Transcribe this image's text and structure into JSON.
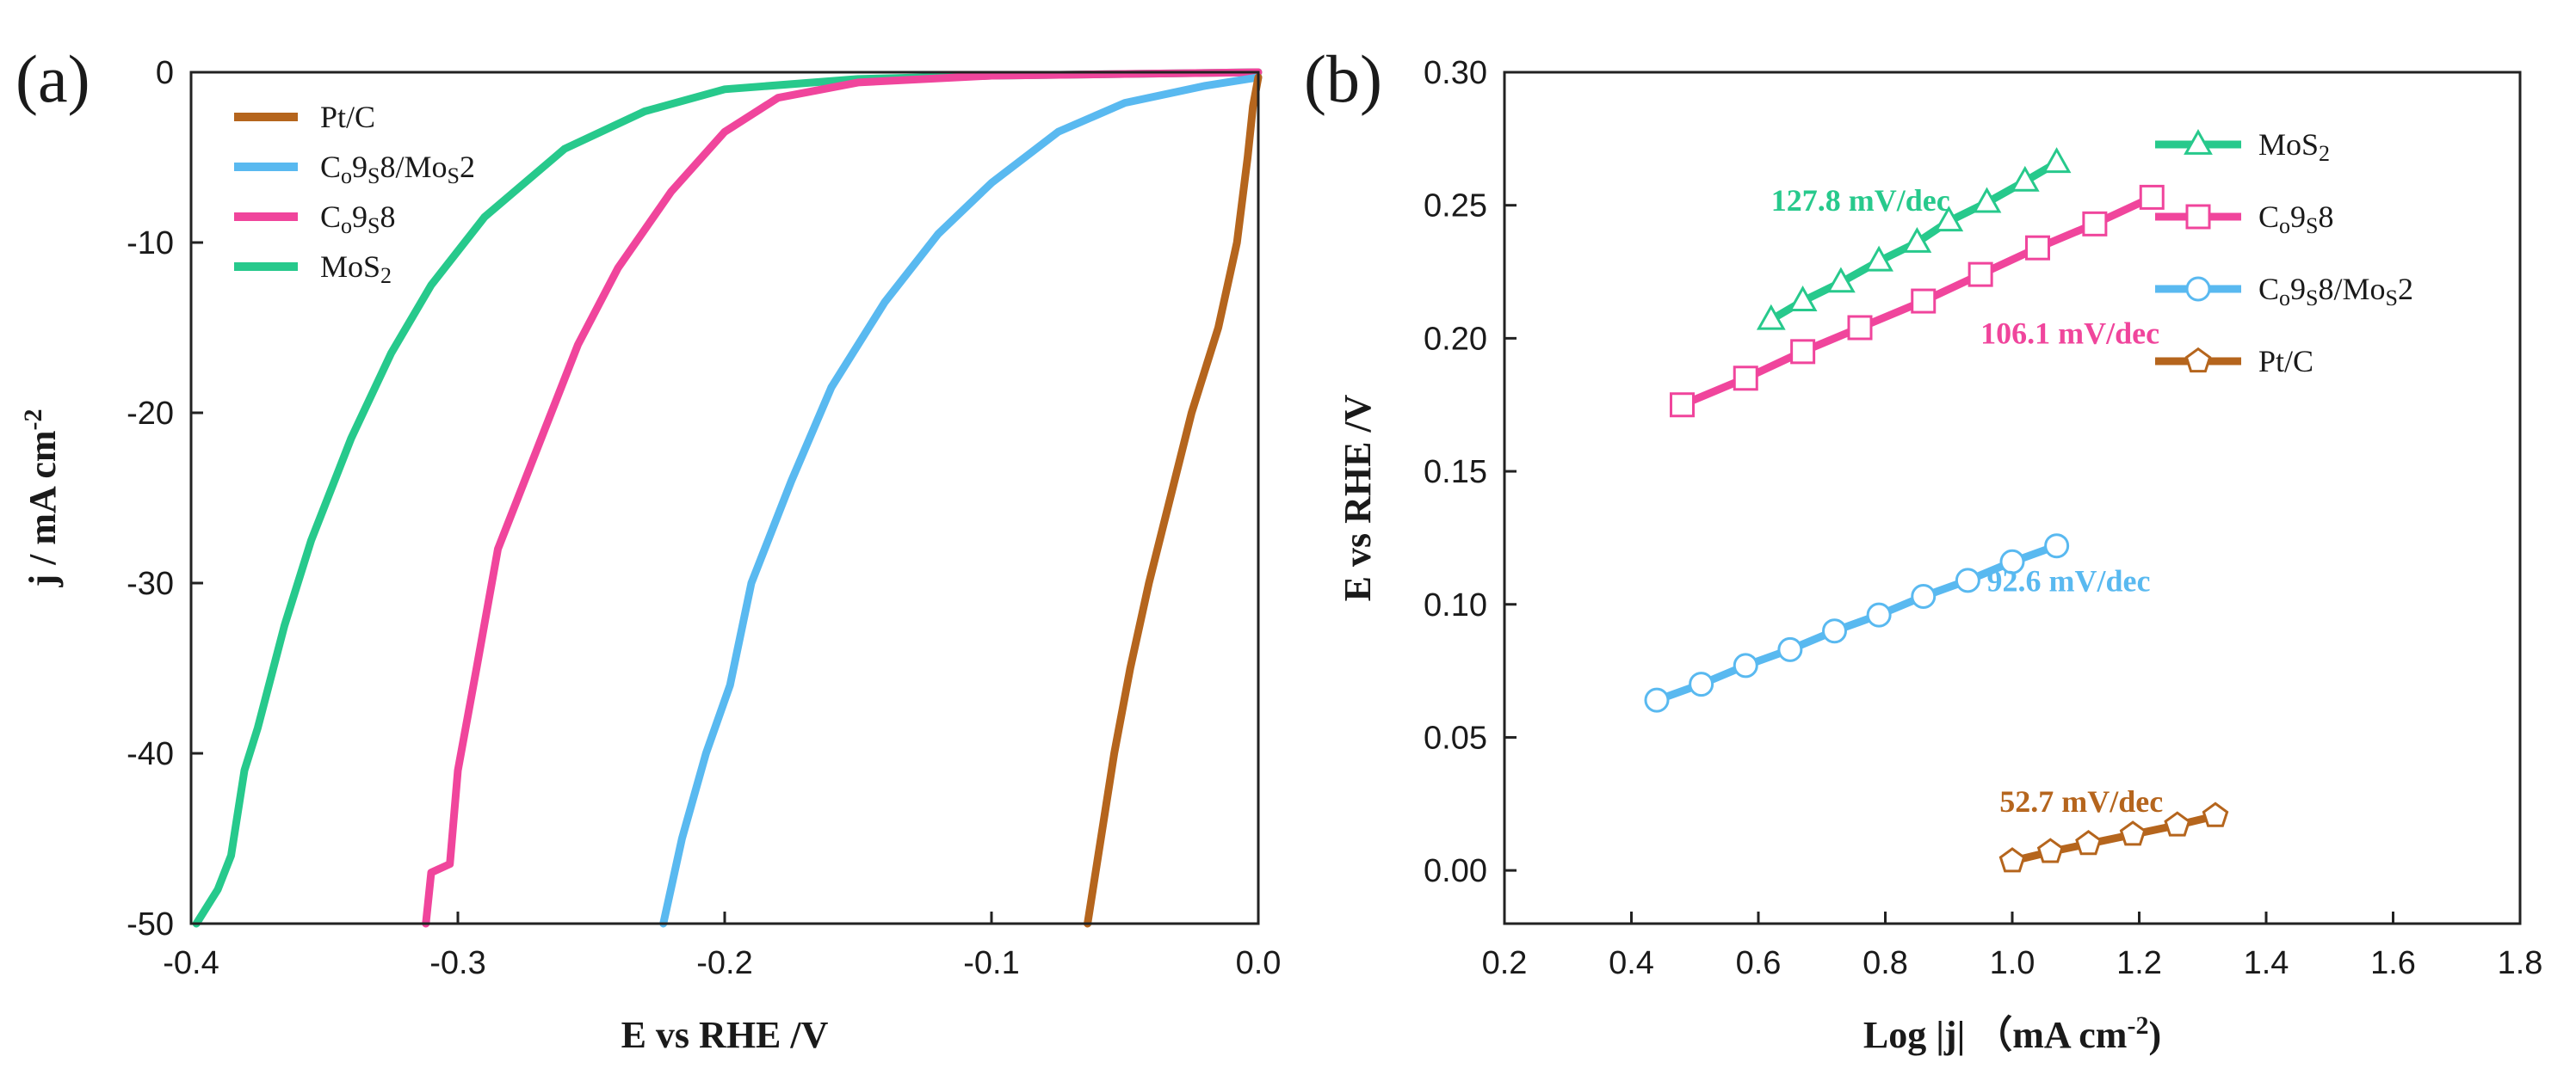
{
  "panels": {
    "a": {
      "label": "(a)"
    },
    "b": {
      "label": "(b)"
    }
  },
  "chart_data": [
    {
      "type": "line",
      "panel": "(a)",
      "xlabel": "E vs RHE /V",
      "ylabel": "j / mA cm",
      "ylabel_sup": "-2",
      "xlim": [
        -0.4,
        0.0
      ],
      "ylim": [
        -50,
        0
      ],
      "xticks": [
        -0.4,
        -0.3,
        -0.2,
        -0.1,
        0.0
      ],
      "xtick_labels": [
        "-0.4",
        "-0.3",
        "-0.2",
        "-0.1",
        "0.0"
      ],
      "yticks": [
        0,
        -10,
        -20,
        -30,
        -40,
        -50
      ],
      "ytick_labels": [
        "0",
        "-10",
        "-20",
        "-30",
        "-40",
        "-50"
      ],
      "legend_position": "top-left",
      "series": [
        {
          "key": "ptc",
          "name": "Pt/C",
          "sub": [],
          "color": "#b5651d",
          "points": [
            [
              0.0,
              -0.3
            ],
            [
              -0.002,
              -2
            ],
            [
              -0.004,
              -5
            ],
            [
              -0.008,
              -10
            ],
            [
              -0.015,
              -15
            ],
            [
              -0.025,
              -20
            ],
            [
              -0.033,
              -25
            ],
            [
              -0.041,
              -30
            ],
            [
              -0.048,
              -35
            ],
            [
              -0.054,
              -40
            ],
            [
              -0.059,
              -45
            ],
            [
              -0.064,
              -50
            ]
          ]
        },
        {
          "key": "co9s8mos2",
          "name": "Co9S8/MoS2",
          "sub": [
            1,
            3,
            8
          ],
          "color": "#59b9f0",
          "points": [
            [
              0.0,
              -0.3
            ],
            [
              -0.02,
              -0.8
            ],
            [
              -0.05,
              -1.8
            ],
            [
              -0.075,
              -3.5
            ],
            [
              -0.1,
              -6.5
            ],
            [
              -0.12,
              -9.5
            ],
            [
              -0.14,
              -13.5
            ],
            [
              -0.16,
              -18.5
            ],
            [
              -0.175,
              -24
            ],
            [
              -0.19,
              -30
            ],
            [
              -0.198,
              -36
            ],
            [
              -0.207,
              -40
            ],
            [
              -0.216,
              -45
            ],
            [
              -0.223,
              -50
            ]
          ]
        },
        {
          "key": "co9s8",
          "name": "Co9S8",
          "sub": [
            1,
            3
          ],
          "color": "#f0459c",
          "points": [
            [
              0.0,
              0.0
            ],
            [
              -0.05,
              -0.1
            ],
            [
              -0.1,
              -0.2
            ],
            [
              -0.15,
              -0.6
            ],
            [
              -0.18,
              -1.5
            ],
            [
              -0.2,
              -3.5
            ],
            [
              -0.22,
              -7
            ],
            [
              -0.24,
              -11.5
            ],
            [
              -0.255,
              -16
            ],
            [
              -0.27,
              -22
            ],
            [
              -0.285,
              -28
            ],
            [
              -0.293,
              -35
            ],
            [
              -0.3,
              -41
            ],
            [
              -0.303,
              -46.5
            ],
            [
              -0.31,
              -47
            ],
            [
              -0.312,
              -50
            ]
          ]
        },
        {
          "key": "mos2",
          "name": "MoS2",
          "sub": [
            3
          ],
          "color": "#27c98c",
          "points": [
            [
              0.0,
              0.0
            ],
            [
              -0.05,
              -0.1
            ],
            [
              -0.1,
              -0.2
            ],
            [
              -0.15,
              -0.4
            ],
            [
              -0.2,
              -1.0
            ],
            [
              -0.23,
              -2.3
            ],
            [
              -0.26,
              -4.5
            ],
            [
              -0.29,
              -8.5
            ],
            [
              -0.31,
              -12.5
            ],
            [
              -0.325,
              -16.5
            ],
            [
              -0.34,
              -21.5
            ],
            [
              -0.355,
              -27.5
            ],
            [
              -0.365,
              -32.5
            ],
            [
              -0.375,
              -38.5
            ],
            [
              -0.38,
              -41
            ],
            [
              -0.385,
              -46
            ],
            [
              -0.39,
              -48
            ],
            [
              -0.398,
              -50
            ]
          ]
        }
      ]
    },
    {
      "type": "line",
      "panel": "(b)",
      "xlabel": "Log |j| （mA cm",
      "xlabel_sup": "-2",
      "xlabel_end": ")",
      "ylabel": "E vs RHE /V",
      "xlim": [
        0.2,
        1.8
      ],
      "ylim": [
        -0.02,
        0.3
      ],
      "xticks": [
        0.2,
        0.4,
        0.6,
        0.8,
        1.0,
        1.2,
        1.4,
        1.6,
        1.8
      ],
      "xtick_labels": [
        "0.2",
        "0.4",
        "0.6",
        "0.8",
        "1.0",
        "1.2",
        "1.4",
        "1.6",
        "1.8"
      ],
      "yticks": [
        0.0,
        0.05,
        0.1,
        0.15,
        0.2,
        0.25,
        0.3
      ],
      "ytick_labels": [
        "0.00",
        "0.05",
        "0.10",
        "0.15",
        "0.20",
        "0.25",
        "0.30"
      ],
      "legend_position": "top-right",
      "series": [
        {
          "key": "mos2",
          "name": "MoS2",
          "sub": [
            3
          ],
          "color": "#27c98c",
          "marker": "triangle",
          "x": [
            0.62,
            0.67,
            0.73,
            0.79,
            0.85,
            0.9,
            0.96,
            1.02,
            1.07
          ],
          "y": [
            0.207,
            0.214,
            0.221,
            0.229,
            0.236,
            0.244,
            0.251,
            0.259,
            0.266
          ],
          "slope_label": "127.8 mV/dec",
          "slope_label_pos": [
            0.62,
            0.248
          ]
        },
        {
          "key": "co9s8",
          "name": "Co9S8",
          "sub": [
            1,
            3
          ],
          "color": "#f0459c",
          "marker": "square",
          "x": [
            0.48,
            0.58,
            0.67,
            0.76,
            0.86,
            0.95,
            1.04,
            1.13,
            1.22
          ],
          "y": [
            0.175,
            0.185,
            0.195,
            0.204,
            0.214,
            0.224,
            0.234,
            0.243,
            0.253
          ],
          "slope_label": "106.1 mV/dec",
          "slope_label_pos": [
            0.95,
            0.198
          ]
        },
        {
          "key": "co9s8mos2",
          "name": "Co9S8/MoS2",
          "sub": [
            1,
            3,
            8
          ],
          "color": "#59b9f0",
          "marker": "circle",
          "x": [
            0.44,
            0.51,
            0.58,
            0.65,
            0.72,
            0.79,
            0.86,
            0.93,
            1.0,
            1.07
          ],
          "y": [
            0.064,
            0.07,
            0.077,
            0.083,
            0.09,
            0.096,
            0.103,
            0.109,
            0.116,
            0.122
          ],
          "slope_label": "92.6 mV/dec",
          "slope_label_pos": [
            0.96,
            0.105
          ]
        },
        {
          "key": "ptc",
          "name": "Pt/C",
          "sub": [],
          "color": "#b5651d",
          "marker": "pentagon",
          "x": [
            1.0,
            1.06,
            1.12,
            1.19,
            1.26,
            1.32
          ],
          "y": [
            0.0035,
            0.007,
            0.01,
            0.0135,
            0.017,
            0.0205
          ],
          "slope_label": "52.7 mV/dec",
          "slope_label_pos": [
            0.98,
            0.022
          ]
        }
      ]
    }
  ]
}
